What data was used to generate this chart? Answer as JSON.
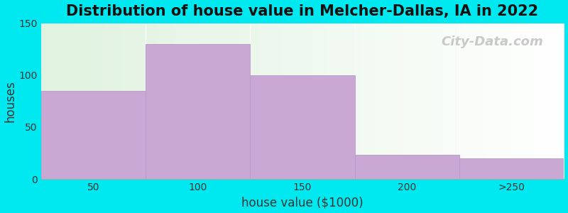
{
  "title": "Distribution of house value in Melcher-Dallas, IA in 2022",
  "xlabel": "house value ($1000)",
  "ylabel": "houses",
  "categories": [
    "50",
    "100",
    "150",
    "200",
    ">250"
  ],
  "values": [
    85,
    130,
    100,
    23,
    20
  ],
  "bar_color": "#c9a8d4",
  "bar_edgecolor": "#b899c8",
  "ylim": [
    0,
    150
  ],
  "yticks": [
    0,
    50,
    100,
    150
  ],
  "background_outer": "#00e8f0",
  "title_fontsize": 15,
  "axis_label_fontsize": 12,
  "tick_fontsize": 10,
  "watermark_text": "City-Data.com",
  "watermark_color": "#c0c0c0",
  "watermark_fontsize": 13,
  "bin_edges": [
    0,
    1,
    2,
    3,
    4,
    5
  ]
}
